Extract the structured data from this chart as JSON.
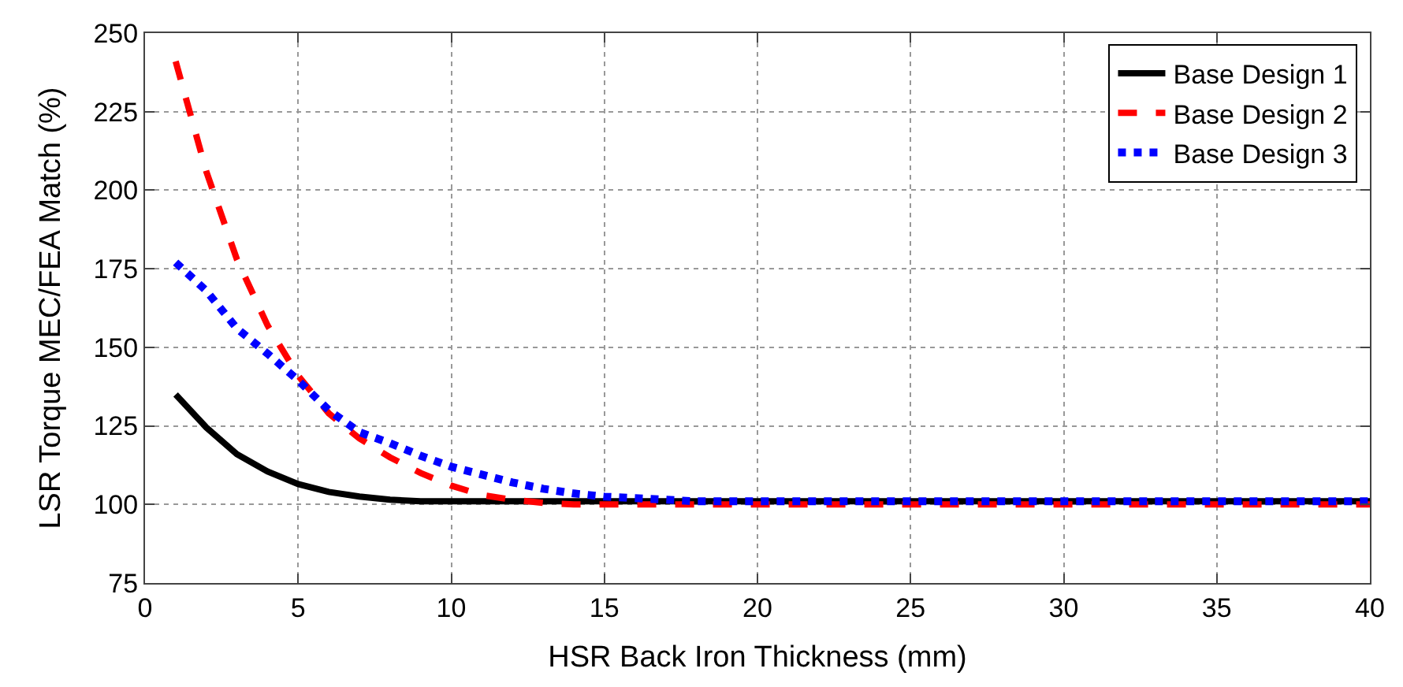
{
  "chart_data": {
    "type": "line",
    "xlabel": "HSR Back Iron Thickness (mm)",
    "ylabel": "LSR Torque MEC/FEA Match (%)",
    "x": [
      1,
      2,
      3,
      4,
      5,
      6,
      7,
      8,
      9,
      10,
      11,
      12,
      13,
      14,
      15,
      16,
      17,
      18,
      20,
      25,
      30,
      35,
      40
    ],
    "series": [
      {
        "name": "Base Design 1",
        "color": "#000000",
        "line_style": "solid",
        "values": [
          135,
          124.5,
          116,
          110.5,
          106.5,
          104,
          102.5,
          101.5,
          101,
          101,
          101,
          101,
          101,
          101,
          101,
          101,
          101,
          101,
          101,
          101,
          101,
          101,
          101
        ]
      },
      {
        "name": "Base Design 2",
        "color": "#ff0000",
        "line_style": "dashed",
        "values": [
          241,
          206,
          178,
          157,
          141,
          129,
          121,
          115,
          110,
          106,
          103,
          101.5,
          100.5,
          100,
          100,
          100,
          100,
          100,
          100,
          100,
          100,
          100,
          100
        ]
      },
      {
        "name": "Base Design 3",
        "color": "#0000ff",
        "line_style": "dotted",
        "values": [
          177,
          168,
          156,
          148,
          139.5,
          130,
          123,
          119.5,
          115.5,
          112,
          109.5,
          107,
          105,
          103.5,
          102.5,
          102,
          101.5,
          101,
          101,
          101,
          101,
          101,
          101
        ]
      }
    ],
    "xlim": [
      0,
      40
    ],
    "xticks": [
      0,
      5,
      10,
      15,
      20,
      25,
      30,
      35,
      40
    ],
    "ylim": [
      75,
      250
    ],
    "yticks": [
      75,
      100,
      125,
      150,
      175,
      200,
      225,
      250
    ],
    "grid": true,
    "legend": "top right",
    "marker": "none"
  }
}
